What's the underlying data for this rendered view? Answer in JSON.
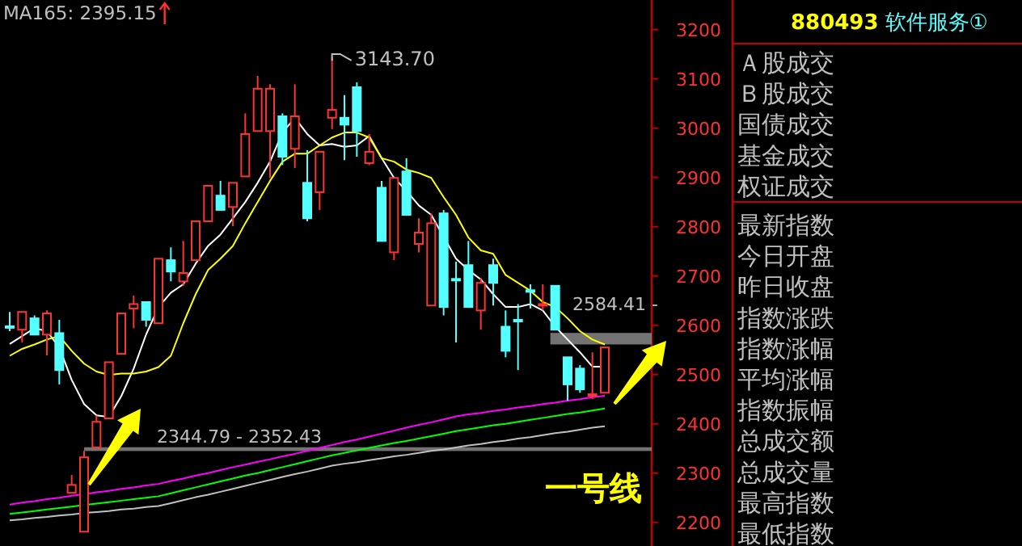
{
  "chart_data": [
    {
      "type": "candlestick",
      "title": "MA165: 2395.15",
      "categories": [
        null,
        null,
        null,
        null,
        null,
        null,
        null,
        null,
        null,
        null,
        null,
        null,
        null,
        null,
        null,
        null,
        null,
        null,
        null,
        null,
        null,
        null,
        null,
        null,
        null,
        null,
        null,
        null,
        null,
        null,
        null,
        null,
        null,
        null,
        null,
        null,
        null,
        null,
        null,
        null,
        null,
        null,
        null,
        null,
        null,
        null,
        null,
        null,
        null
      ],
      "ohlc": [
        [
          2598,
          2627,
          2588,
          2597
        ],
        [
          2591,
          2627,
          2565,
          2627
        ],
        [
          2614,
          2620,
          2581,
          2581
        ],
        [
          2581,
          2630,
          2539,
          2624
        ],
        [
          2584,
          2611,
          2480,
          2509
        ],
        [
          2260,
          2296,
          2260,
          2276
        ],
        [
          2181,
          2345,
          2181,
          2332
        ],
        [
          2352,
          2417,
          2352,
          2404
        ],
        [
          2411,
          2525,
          2411,
          2525
        ],
        [
          2542,
          2624,
          2542,
          2624
        ],
        [
          2634,
          2660,
          2594,
          2643
        ],
        [
          2647,
          2647,
          2597,
          2611
        ],
        [
          2604,
          2735,
          2604,
          2735
        ],
        [
          2732,
          2758,
          2689,
          2709
        ],
        [
          2689,
          2771,
          2680,
          2706
        ],
        [
          2732,
          2811,
          2732,
          2811
        ],
        [
          2811,
          2883,
          2811,
          2883
        ],
        [
          2863,
          2893,
          2834,
          2834
        ],
        [
          2840,
          2889,
          2801,
          2889
        ],
        [
          2902,
          3030,
          2902,
          2988
        ],
        [
          2994,
          3106,
          2994,
          3080
        ],
        [
          2994,
          3089,
          2899,
          3080
        ],
        [
          3024,
          3030,
          2925,
          2942
        ],
        [
          2958,
          3089,
          2919,
          3024
        ],
        [
          2889,
          2955,
          2811,
          2817
        ],
        [
          2870,
          2952,
          2834,
          2952
        ],
        [
          3021,
          3143.7,
          2998,
          3037
        ],
        [
          3021,
          3067,
          2935,
          3007
        ],
        [
          3083,
          3093,
          2942,
          2994
        ],
        [
          2929,
          2988,
          2925,
          2952
        ],
        [
          2879,
          2893,
          2771,
          2771
        ],
        [
          2748,
          2899,
          2732,
          2899
        ],
        [
          2912,
          2939,
          2824,
          2824
        ],
        [
          2765,
          2817,
          2748,
          2788
        ],
        [
          2640,
          2827,
          2640,
          2807
        ],
        [
          2827,
          2834,
          2620,
          2637
        ],
        [
          2694,
          2729,
          2565,
          2693
        ],
        [
          2722,
          2771,
          2637,
          2637
        ],
        [
          2630,
          2696,
          2591,
          2686
        ],
        [
          2722,
          2735,
          2640,
          2686
        ],
        [
          2597,
          2630,
          2535,
          2548
        ],
        [
          2611,
          2643,
          2509,
          2610
        ],
        [
          2671,
          2683,
          2634,
          2670
        ],
        [
          2640,
          2683,
          2630,
          2643
        ],
        [
          2680,
          2680,
          2591,
          2591
        ],
        [
          2535,
          2535,
          2447,
          2480
        ],
        [
          2512,
          2519,
          2463,
          2470
        ],
        [
          2457,
          2545,
          2450,
          2460
        ],
        [
          2463,
          2555,
          2463,
          2555
        ]
      ],
      "colors": [
        "#54ffff",
        "#ff3232",
        "#54ffff",
        "#ff3232",
        "#54ffff",
        "#ff3232",
        "#ff3232",
        "#ff3232",
        "#ff3232",
        "#ff3232",
        "#ff3232",
        "#54ffff",
        "#ff3232",
        "#54ffff",
        "#ff3232",
        "#ff3232",
        "#ff3232",
        "#54ffff",
        "#ff3232",
        "#ff3232",
        "#ff3232",
        "#ff3232",
        "#54ffff",
        "#ff3232",
        "#54ffff",
        "#ff3232",
        "#ff3232",
        "#54ffff",
        "#54ffff",
        "#ff3232",
        "#54ffff",
        "#ff3232",
        "#54ffff",
        "#ff3232",
        "#ff3232",
        "#54ffff",
        "#54ffff",
        "#54ffff",
        "#ff3232",
        "#54ffff",
        "#54ffff",
        "#54ffff",
        "#54ffff",
        "#ff3232",
        "#54ffff",
        "#54ffff",
        "#54ffff",
        "#ff3232",
        "#ff3232"
      ],
      "series": [
        {
          "type": "line",
          "color": "#ffffff",
          "values": [
            2562,
            2578,
            2594,
            2588,
            2555,
            2489,
            2440,
            2417,
            2414,
            2456,
            2512,
            2581,
            2637,
            2666,
            2683,
            2725,
            2761,
            2784,
            2817,
            2850,
            2889,
            2932,
            2991,
            3021,
            2988,
            2965,
            2968,
            2962,
            2965,
            2984,
            2939,
            2899,
            2873,
            2843,
            2824,
            null,
            2735,
            2712,
            2693,
            2663,
            2637,
            2637,
            2643,
            2630,
            2597,
            2571,
            2545,
            2516,
            2516
          ]
        },
        {
          "type": "line",
          "color": "#ffff00",
          "values": [
            2538,
            2552,
            2561,
            2571,
            2578,
            2548,
            2522,
            2506,
            2499,
            2502,
            2502,
            2506,
            2515,
            2538,
            2604,
            2663,
            2712,
            2735,
            2761,
            2807,
            2850,
            2893,
            2932,
            2948,
            2948,
            2965,
            2981,
            2991,
            2991,
            2981,
            2939,
            2932,
            2916,
            2909,
            2899,
            2860,
            2824,
            2778,
            2752,
            2745,
            2702,
            2686,
            2670,
            2647,
            2637,
            2614,
            2588,
            2571,
            2561
          ]
        },
        {
          "type": "line",
          "color": "#ff00ff",
          "values": [
            2236,
            2240,
            2243,
            2247,
            2250,
            2254,
            2257,
            2261,
            2264,
            2268,
            2271,
            2275,
            2278,
            2284,
            2289,
            2295,
            2300,
            2306,
            2312,
            2317,
            2323,
            2328,
            2334,
            2339,
            2345,
            2351,
            2357,
            2363,
            2368,
            2374,
            2380,
            2386,
            2392,
            2398,
            2403,
            2409,
            2415,
            2419,
            2422,
            2426,
            2429,
            2433,
            2436,
            2440,
            2443,
            2447,
            2450,
            2454,
            2457
          ]
        },
        {
          "type": "line",
          "color": "#00ff00",
          "values": [
            2217,
            2220,
            2223,
            2226,
            2229,
            2232,
            2235,
            2238,
            2241,
            2244,
            2247,
            2250,
            2253,
            2259,
            2265,
            2271,
            2277,
            2283,
            2289,
            2295,
            2300,
            2306,
            2312,
            2318,
            2324,
            2330,
            2336,
            2341,
            2346,
            2351,
            2356,
            2361,
            2365,
            2370,
            2375,
            2380,
            2385,
            2389,
            2393,
            2397,
            2400,
            2404,
            2408,
            2412,
            2416,
            2420,
            2423,
            2427,
            2431
          ]
        },
        {
          "type": "line",
          "color": "#c0c0c0",
          "values": [
            2204,
            2206,
            2209,
            2211,
            2214,
            2216,
            2219,
            2221,
            2223,
            2226,
            2228,
            2231,
            2233,
            2239,
            2245,
            2251,
            2256,
            2262,
            2268,
            2274,
            2280,
            2286,
            2292,
            2298,
            2303,
            2309,
            2315,
            2319,
            2322,
            2326,
            2330,
            2334,
            2337,
            2341,
            2345,
            2348,
            2352,
            2356,
            2359,
            2363,
            2366,
            2370,
            2373,
            2377,
            2381,
            2384,
            2388,
            2392,
            2395
          ]
        }
      ],
      "ylim": [
        2152,
        3260
      ],
      "yticks": [
        2200,
        2300,
        2400,
        2500,
        2600,
        2700,
        2800,
        2900,
        3000,
        3100,
        3200
      ],
      "bands": [
        {
          "axis": "y",
          "from": 2561,
          "to": 2584.41,
          "label": "2584.41 -",
          "color": "#808080"
        },
        {
          "axis": "y",
          "from": 2344.79,
          "to": 2352.43,
          "label": "2344.79 - 2352.43",
          "color": "#808080"
        }
      ],
      "annotations": [
        "3143.70",
        "一号线"
      ],
      "tick_labels": "y"
    },
    {
      "type": "other",
      "title": "880493",
      "subtitle": "软件服务①",
      "annotations": [
        "Ａ股成交",
        "Ｂ股成交",
        "国债成交",
        "基金成交",
        "权证成交",
        "最新指数",
        "今日开盘",
        "昨日收盘",
        "指数涨跌",
        "指数涨幅",
        "平均涨幅",
        "指数振幅",
        "总成交额",
        "总成交量",
        "最高指数",
        "最低指数"
      ]
    }
  ]
}
